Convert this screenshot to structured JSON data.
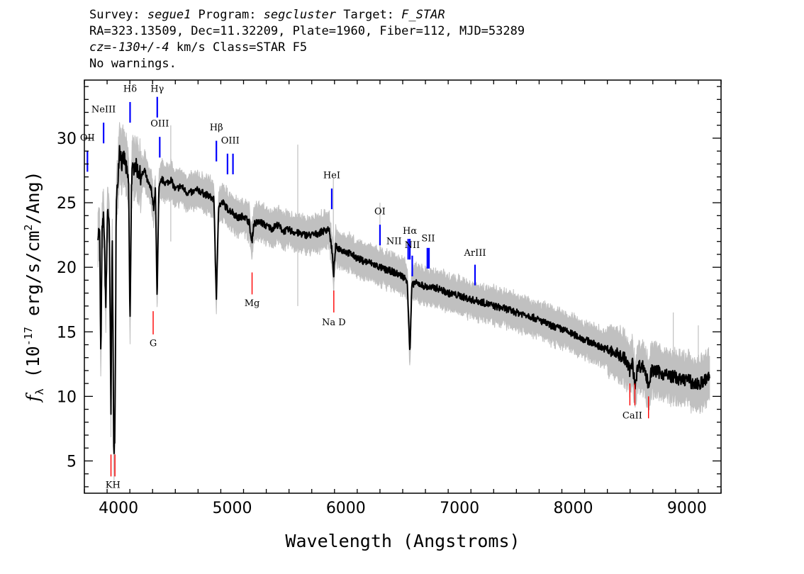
{
  "header": {
    "line1": [
      {
        "text": "Survey: ",
        "italic": false
      },
      {
        "text": "segue1",
        "italic": true
      },
      {
        "text": " Program: ",
        "italic": false
      },
      {
        "text": "segcluster",
        "italic": true
      },
      {
        "text": " Target: ",
        "italic": false
      },
      {
        "text": "F_STAR",
        "italic": true
      }
    ],
    "line2": "RA=323.13509, Dec=11.32209, Plate=1960, Fiber=112, MJD=53289",
    "line3": [
      {
        "text": "cz=-130+/-4",
        "italic": true
      },
      {
        "text": " km/s Class=STAR F5",
        "italic": false
      }
    ],
    "line4": "No warnings."
  },
  "chart_data": {
    "type": "line",
    "xlabel": "Wavelength (Angstroms)",
    "ylabel_prefix": "f",
    "ylabel_sub": "λ",
    "ylabel_units": "(10^-17 erg/s/cm^2/Ang)",
    "ylabel_parts": [
      {
        "text": "(10",
        "sup": false
      },
      {
        "text": "-17",
        "sup": true
      },
      {
        "text": " erg/s/cm",
        "sup": false
      },
      {
        "text": "2",
        "sup": true
      },
      {
        "text": "/Ang)",
        "sup": false
      }
    ],
    "xlim": [
      3700,
      9300
    ],
    "ylim": [
      2.5,
      34.5
    ],
    "xticks": [
      4000,
      5000,
      6000,
      7000,
      8000,
      9000
    ],
    "yticks": [
      5,
      10,
      15,
      20,
      25,
      30
    ],
    "colors": {
      "flux": "#000000",
      "error_band": "#c0c0c0",
      "emission": "#0000ff",
      "absorption": "#ff0000"
    },
    "series": [
      {
        "role": "flux",
        "points": [
          [
            3820,
            22.8
          ],
          [
            3835,
            22.5
          ],
          [
            3845,
            12.4
          ],
          [
            3855,
            22.5
          ],
          [
            3870,
            24.0
          ],
          [
            3889,
            17.0
          ],
          [
            3905,
            25.0
          ],
          [
            3920,
            22.5
          ],
          [
            3934,
            8.5
          ],
          [
            3945,
            24.0
          ],
          [
            3958,
            6.2
          ],
          [
            3968,
            5.8
          ],
          [
            3980,
            24.5
          ],
          [
            3995,
            27.0
          ],
          [
            4010,
            29.5
          ],
          [
            4030,
            28.0
          ],
          [
            4050,
            28.5
          ],
          [
            4070,
            27.5
          ],
          [
            4090,
            26.5
          ],
          [
            4101,
            15.0
          ],
          [
            4115,
            27.0
          ],
          [
            4140,
            28.0
          ],
          [
            4170,
            27.5
          ],
          [
            4200,
            27.0
          ],
          [
            4230,
            27.5
          ],
          [
            4260,
            26.5
          ],
          [
            4290,
            26.0
          ],
          [
            4310,
            24.5
          ],
          [
            4325,
            26.0
          ],
          [
            4340,
            17.5
          ],
          [
            4355,
            26.0
          ],
          [
            4380,
            26.8
          ],
          [
            4420,
            26.5
          ],
          [
            4460,
            26.8
          ],
          [
            4500,
            26.0
          ],
          [
            4550,
            26.3
          ],
          [
            4600,
            25.8
          ],
          [
            4650,
            25.8
          ],
          [
            4700,
            26.0
          ],
          [
            4750,
            25.7
          ],
          [
            4800,
            25.5
          ],
          [
            4840,
            25.2
          ],
          [
            4861,
            17.3
          ],
          [
            4880,
            24.8
          ],
          [
            4920,
            25.0
          ],
          [
            4960,
            24.5
          ],
          [
            5000,
            24.3
          ],
          [
            5050,
            23.8
          ],
          [
            5100,
            24.0
          ],
          [
            5150,
            23.5
          ],
          [
            5172,
            21.8
          ],
          [
            5190,
            23.4
          ],
          [
            5250,
            23.5
          ],
          [
            5300,
            23.2
          ],
          [
            5350,
            23.0
          ],
          [
            5400,
            23.3
          ],
          [
            5450,
            22.8
          ],
          [
            5500,
            22.9
          ],
          [
            5550,
            22.7
          ],
          [
            5600,
            22.6
          ],
          [
            5650,
            22.5
          ],
          [
            5700,
            22.5
          ],
          [
            5750,
            22.6
          ],
          [
            5800,
            22.8
          ],
          [
            5850,
            23.0
          ],
          [
            5875,
            21.5
          ],
          [
            5893,
            19.5
          ],
          [
            5910,
            21.6
          ],
          [
            5950,
            21.4
          ],
          [
            6000,
            21.2
          ],
          [
            6050,
            21.0
          ],
          [
            6100,
            20.7
          ],
          [
            6150,
            20.5
          ],
          [
            6200,
            20.4
          ],
          [
            6250,
            20.2
          ],
          [
            6300,
            20.0
          ],
          [
            6350,
            19.8
          ],
          [
            6400,
            19.7
          ],
          [
            6450,
            19.5
          ],
          [
            6500,
            19.3
          ],
          [
            6540,
            19.0
          ],
          [
            6563,
            13.2
          ],
          [
            6580,
            18.5
          ],
          [
            6600,
            18.8
          ],
          [
            6650,
            18.7
          ],
          [
            6700,
            18.5
          ],
          [
            6750,
            18.4
          ],
          [
            6800,
            18.4
          ],
          [
            6850,
            18.2
          ],
          [
            6900,
            18.0
          ],
          [
            6950,
            17.9
          ],
          [
            7000,
            17.8
          ],
          [
            7100,
            17.5
          ],
          [
            7200,
            17.3
          ],
          [
            7300,
            17.0
          ],
          [
            7400,
            16.8
          ],
          [
            7500,
            16.5
          ],
          [
            7600,
            16.3
          ],
          [
            7700,
            15.9
          ],
          [
            7800,
            15.5
          ],
          [
            7900,
            15.2
          ],
          [
            8000,
            14.8
          ],
          [
            8100,
            14.4
          ],
          [
            8200,
            14.0
          ],
          [
            8300,
            13.6
          ],
          [
            8400,
            13.2
          ],
          [
            8450,
            13.0
          ],
          [
            8498,
            12.0
          ],
          [
            8520,
            12.6
          ],
          [
            8542,
            10.9
          ],
          [
            8570,
            12.4
          ],
          [
            8620,
            12.3
          ],
          [
            8662,
            10.9
          ],
          [
            8690,
            12.0
          ],
          [
            8750,
            11.9
          ],
          [
            8800,
            11.7
          ],
          [
            8850,
            11.6
          ],
          [
            8900,
            11.5
          ],
          [
            8950,
            11.2
          ],
          [
            9000,
            11.4
          ],
          [
            9050,
            11.0
          ],
          [
            9100,
            10.9
          ],
          [
            9150,
            11.2
          ],
          [
            9200,
            11.5
          ]
        ]
      }
    ],
    "emission_lines": [
      {
        "label": "OII",
        "wavelength": 3727,
        "y_bottom": 27.4,
        "y_top": 29.0,
        "label_y": 29.8,
        "double": false
      },
      {
        "label": "NeIII",
        "wavelength": 3869,
        "y_bottom": 29.6,
        "y_top": 31.2,
        "label_y": 32.0,
        "double": false
      },
      {
        "label": "Hδ",
        "wavelength": 4102,
        "y_bottom": 31.2,
        "y_top": 32.8,
        "label_y": 33.6,
        "double": false
      },
      {
        "label": "Hγ",
        "wavelength": 4341,
        "y_bottom": 31.6,
        "y_top": 33.2,
        "label_y": 33.6,
        "double": false
      },
      {
        "label": "OIII",
        "wavelength": 4363,
        "y_bottom": 28.5,
        "y_top": 30.1,
        "label_y": 30.9,
        "double": false
      },
      {
        "label": "Hβ",
        "wavelength": 4861,
        "y_bottom": 28.2,
        "y_top": 29.8,
        "label_y": 30.6,
        "double": false
      },
      {
        "label": "OIII",
        "wavelength": 4959,
        "wavelength2": 5007,
        "y_bottom": 27.2,
        "y_top": 28.8,
        "label_y": 29.6,
        "double": true
      },
      {
        "label": "HeI",
        "wavelength": 5876,
        "y_bottom": 24.5,
        "y_top": 26.1,
        "label_y": 26.9,
        "double": false
      },
      {
        "label": "OI",
        "wavelength": 6300,
        "y_bottom": 21.7,
        "y_top": 23.3,
        "label_y": 24.1,
        "double": false
      },
      {
        "label": "NII",
        "wavelength": 6548,
        "y_bottom": 20.6,
        "y_top": 22.2,
        "label_y": 21.8,
        "double": false
      },
      {
        "label": "Hα",
        "wavelength": 6563,
        "y_bottom": 20.6,
        "y_top": 22.2,
        "label_y": 22.6,
        "double": false
      },
      {
        "label": "NII",
        "wavelength": 6584,
        "y_bottom": 19.3,
        "y_top": 20.9,
        "label_y": 21.5,
        "double": false
      },
      {
        "label": "SII",
        "wavelength": 6717,
        "wavelength2": 6731,
        "y_bottom": 19.9,
        "y_top": 21.5,
        "label_y": 22.0,
        "double": true
      },
      {
        "label": "ArIII",
        "wavelength": 7136,
        "y_bottom": 18.6,
        "y_top": 20.2,
        "label_y": 20.9,
        "double": false
      }
    ],
    "absorption_lines": [
      {
        "label": "KH",
        "wavelength": 3934,
        "wavelength2": 3969,
        "y_bottom": 3.8,
        "y_top": 5.5,
        "label_y": 2.9,
        "double": true
      },
      {
        "label": "G",
        "wavelength": 4305,
        "y_bottom": 14.8,
        "y_top": 16.6,
        "label_y": 13.9,
        "double": false
      },
      {
        "label": "Mg",
        "wavelength": 5175,
        "y_bottom": 17.9,
        "y_top": 19.6,
        "label_y": 17.0,
        "double": false
      },
      {
        "label": "Na D",
        "wavelength": 5894,
        "y_bottom": 16.5,
        "y_top": 18.2,
        "label_y": 15.5,
        "double": false
      },
      {
        "label": "CaII",
        "wavelength": 8498,
        "wavelength2": 8542,
        "wavelength3": 8662,
        "y_bottom": 9.3,
        "y_top": 11.0,
        "label_y": 8.3,
        "triple": true
      }
    ]
  }
}
